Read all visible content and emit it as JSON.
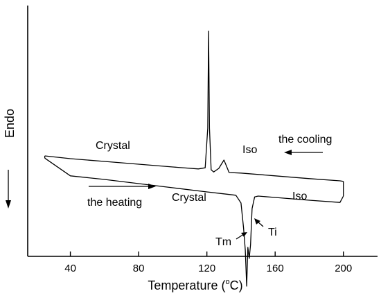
{
  "chart_data": {
    "type": "line",
    "title": "",
    "xlabel": "Temperature (°C)",
    "xlabel_main": "Temperature (",
    "xlabel_unit_sup": "o",
    "xlabel_unit_end": "C)",
    "ylabel": "Endo",
    "xlim": [
      15,
      220
    ],
    "xticks": [
      40,
      80,
      120,
      160,
      200
    ],
    "yticks_shown": false,
    "y_units": "arbitrary (heat flow, endo up)",
    "series": [
      {
        "curve": "cooling",
        "x": [
          25,
          40,
          60,
          80,
          100,
          115,
          119,
          120.5,
          121,
          121.5,
          122.5,
          124,
          127,
          129,
          130,
          131,
          133,
          140,
          160,
          180,
          198,
          200
        ],
        "y": [
          0.0,
          -0.1,
          -0.2,
          -0.3,
          -0.4,
          -0.47,
          -0.43,
          1.0,
          4.5,
          1.0,
          -0.5,
          -0.58,
          -0.45,
          -0.25,
          -0.15,
          -0.3,
          -0.6,
          -0.62,
          -0.72,
          -0.82,
          -0.9,
          -0.92
        ]
      },
      {
        "curve": "heating",
        "x": [
          25,
          40,
          60,
          80,
          100,
          120,
          130,
          137,
          140,
          141.5,
          142.5,
          143.3,
          144,
          144.8,
          145.6,
          146.5,
          148,
          150,
          160,
          180,
          198,
          200
        ],
        "y": [
          -0.08,
          -0.72,
          -0.85,
          -1.0,
          -1.15,
          -1.3,
          -1.37,
          -1.42,
          -1.7,
          -2.6,
          -3.4,
          -4.7,
          -3.3,
          -3.7,
          -3.2,
          -1.9,
          -1.48,
          -1.45,
          -1.5,
          -1.6,
          -1.68,
          -1.45
        ]
      }
    ],
    "annotations": {
      "crystal_cooling": "Crystal",
      "iso_cooling": "Iso",
      "the_cooling": "the cooling",
      "the_heating": "the heating",
      "crystal_heating": "Crystal",
      "iso_heating": "Iso",
      "tm": "Tm",
      "ti": "Ti"
    }
  }
}
